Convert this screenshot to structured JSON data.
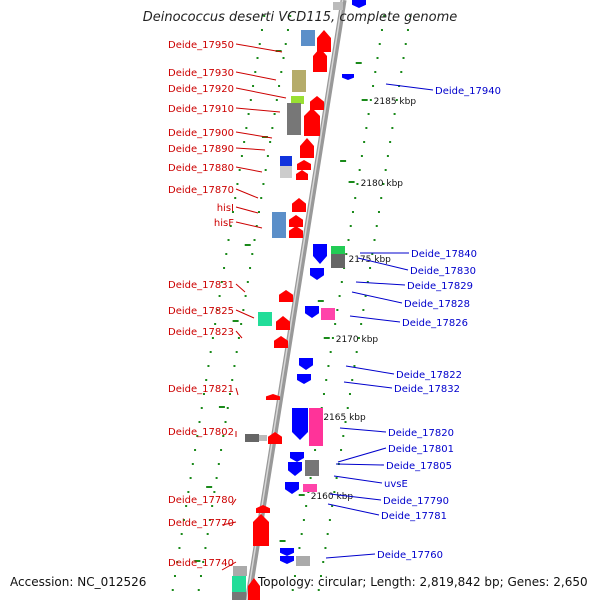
{
  "title": "Deinococcus deserti VCD115, complete genome",
  "footer": {
    "accession": "Accession: NC_012526",
    "summary": "Topology: circular; Length: 2,819,842 bp; Genes: 2,650"
  },
  "colors": {
    "backbone": "#999999",
    "left_label": "#cc0000",
    "right_label": "#0000cc",
    "tick": "#1a8a1a",
    "forward_arrow": "#ff0000",
    "reverse_arrow": "#0000ff"
  },
  "scale_ticks": [
    {
      "label": "2185 kbp"
    },
    {
      "label": "2180 kbp"
    },
    {
      "label": "2175 kbp"
    },
    {
      "label": "2170 kbp"
    },
    {
      "label": "2165 kbp"
    },
    {
      "label": "2160 kbp"
    }
  ],
  "left_labels": [
    "Deide_17950",
    "Deide_17930",
    "Deide_17920",
    "Deide_17910",
    "Deide_17900",
    "Deide_17890",
    "Deide_17880",
    "Deide_17870",
    "hisI",
    "hisF",
    "Deide_17831",
    "Deide_17825",
    "Deide_17823",
    "Deide_17821",
    "Deide_17802",
    "Deide_17780",
    "Deide_17770",
    "Deide_17740"
  ],
  "right_labels": [
    "Deide_17940",
    "Deide_17840",
    "Deide_17830",
    "Deide_17829",
    "Deide_17828",
    "Deide_17826",
    "Deide_17822",
    "Deide_17832",
    "Deide_17820",
    "Deide_17801",
    "Deide_17805",
    "uvsE",
    "Deide_17790",
    "Deide_17781",
    "Deide_17760"
  ]
}
